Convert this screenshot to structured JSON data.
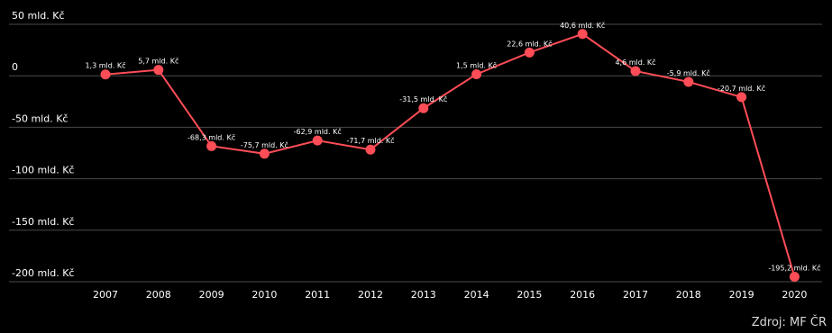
{
  "chart_data": {
    "type": "line",
    "x": [
      "2007",
      "2008",
      "2009",
      "2010",
      "2011",
      "2012",
      "2013",
      "2014",
      "2015",
      "2016",
      "2017",
      "2018",
      "2019",
      "2020"
    ],
    "series": [
      {
        "values": [
          1.3,
          5.7,
          -68.3,
          -75.7,
          -62.9,
          -71.7,
          -31.5,
          1.5,
          22.6,
          40.6,
          4.6,
          -5.9,
          -20.7,
          -195.2
        ],
        "labels": [
          "1,3 mld. Kč",
          "5,7 mld. Kč",
          "-68,3 mld. Kč",
          "-75,7 mld. Kč",
          "-62,9 mld. Kč",
          "-71,7 mld. Kč",
          "-31,5 mld. Kč",
          "1,5 mld. Kč",
          "22,6 mld. Kč",
          "40,6 mld. Kč",
          "4,6 mld. Kč",
          "-5,9 mld. Kč",
          "-20,7 mld. Kč",
          "-195,2 mld. Kč"
        ]
      }
    ],
    "yticks": [
      50,
      0,
      -50,
      -100,
      -150,
      -200
    ],
    "ytick_labels": [
      "50 mld. Kč",
      "0",
      "-50 mld. Kč",
      "-100 mld. Kč",
      "-150 mld. Kč",
      "-200 mld. Kč"
    ],
    "ylim": [
      -200,
      50
    ],
    "grid": true,
    "line_color": "#ff4d57",
    "grid_color": "#4a4a4a"
  },
  "source": "Zdroj: MF ČR"
}
